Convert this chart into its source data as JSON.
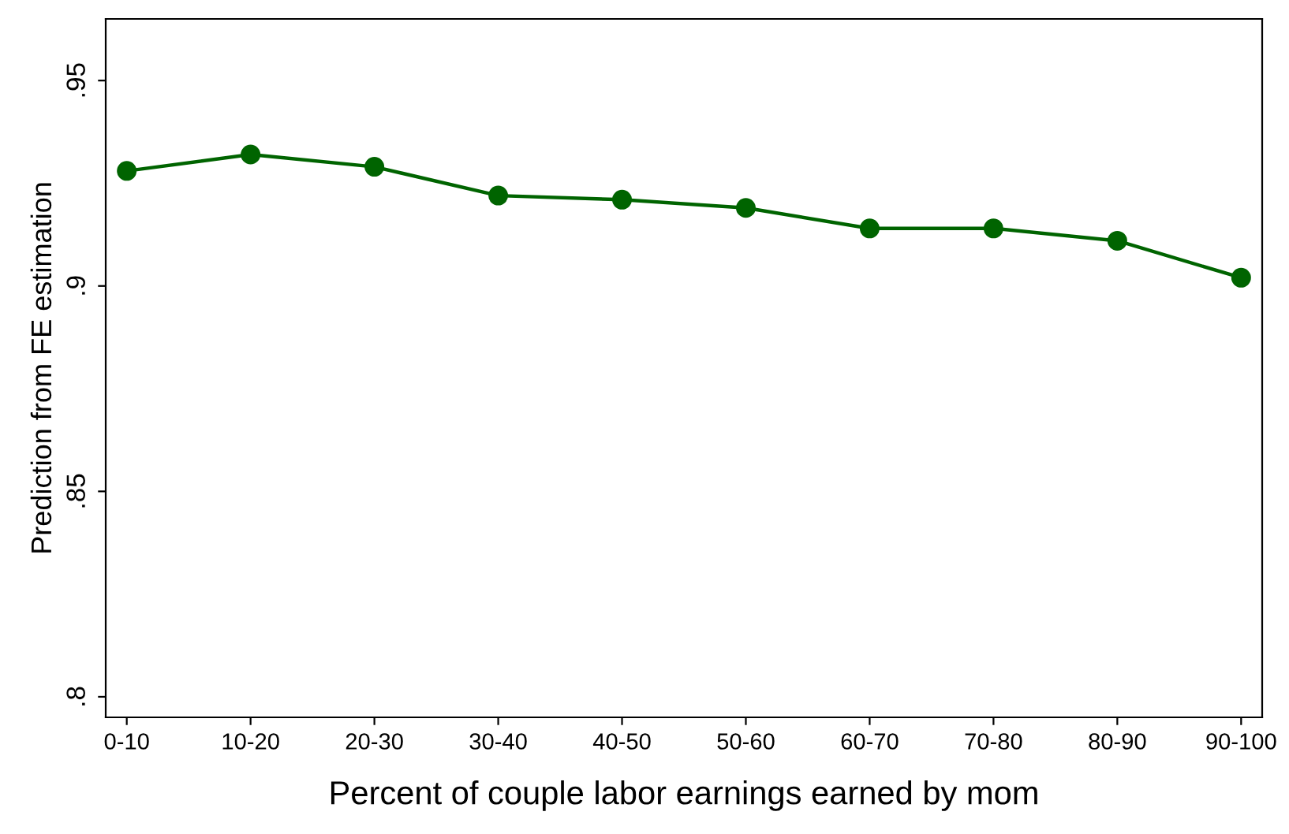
{
  "chart_data": {
    "type": "line",
    "xlabel": "Percent of couple labor earnings earned by mom",
    "ylabel": "Prediction from FE estimation",
    "categories": [
      "0-10",
      "10-20",
      "20-30",
      "30-40",
      "40-50",
      "50-60",
      "60-70",
      "70-80",
      "80-90",
      "90-100"
    ],
    "series": [
      {
        "color": "#006400",
        "values": [
          0.928,
          0.932,
          0.929,
          0.922,
          0.921,
          0.919,
          0.914,
          0.914,
          0.911,
          0.902
        ]
      }
    ],
    "ylim": [
      0.795,
      0.965
    ],
    "yticks": [
      {
        "value": 0.8,
        "label": ".8"
      },
      {
        "value": 0.85,
        "label": ".85"
      },
      {
        "value": 0.9,
        "label": ".9"
      },
      {
        "value": 0.95,
        "label": ".95"
      }
    ],
    "marker": "circle",
    "line_style": "solid",
    "grid": false,
    "legend": false
  }
}
